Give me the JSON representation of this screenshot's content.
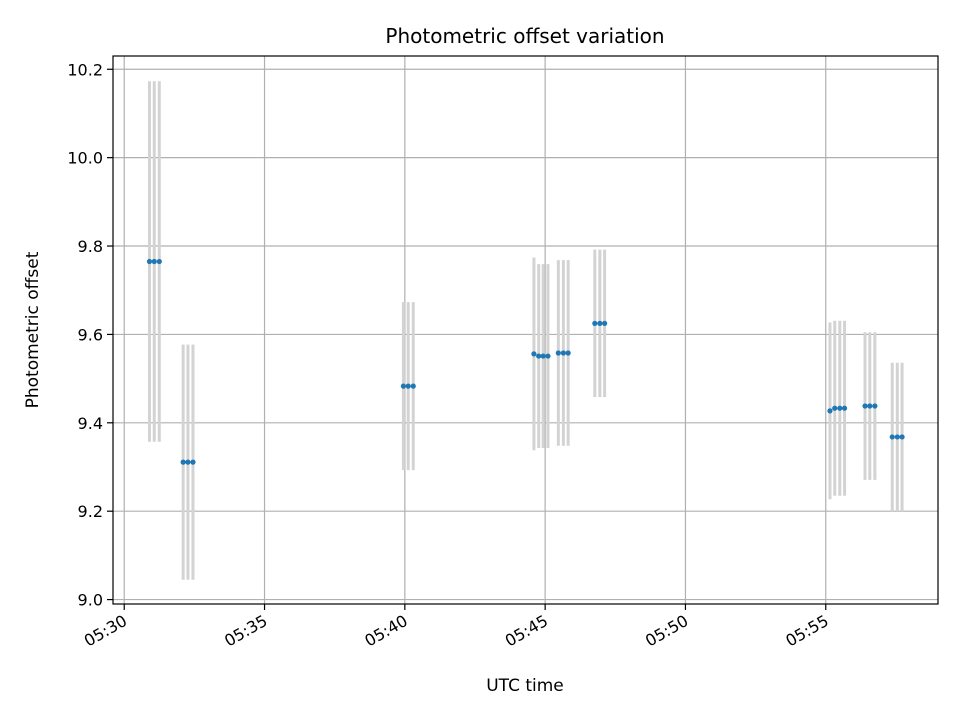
{
  "chart_data": {
    "type": "scatter",
    "title": "Photometric offset variation",
    "xlabel": "UTC time",
    "ylabel": "Photometric offset",
    "x_unit": "minutes past 05:00 UTC",
    "xlim": [
      29.6,
      59.0
    ],
    "ylim": [
      8.99,
      10.23
    ],
    "x_ticks": [
      {
        "value": 30,
        "label": "05:30"
      },
      {
        "value": 35,
        "label": "05:35"
      },
      {
        "value": 40,
        "label": "05:40"
      },
      {
        "value": 45,
        "label": "05:45"
      },
      {
        "value": 50,
        "label": "05:50"
      },
      {
        "value": 55,
        "label": "05:55"
      }
    ],
    "y_ticks": [
      {
        "value": 9.0,
        "label": "9.0"
      },
      {
        "value": 9.2,
        "label": "9.2"
      },
      {
        "value": 9.4,
        "label": "9.4"
      },
      {
        "value": 9.6,
        "label": "9.6"
      },
      {
        "value": 9.8,
        "label": "9.8"
      },
      {
        "value": 10.0,
        "label": "10.0"
      },
      {
        "value": 10.2,
        "label": "10.2"
      }
    ],
    "grid": true,
    "colors": {
      "points": "#1f77b4",
      "errorbars": "#d3d3d3",
      "grid": "#b0b0b0"
    },
    "series": [
      {
        "points": [
          {
            "x": 30.9,
            "y": 9.765,
            "err": 0.408
          },
          {
            "x": 31.07,
            "y": 9.765,
            "err": 0.408
          },
          {
            "x": 31.25,
            "y": 9.765,
            "err": 0.408
          },
          {
            "x": 32.1,
            "y": 9.311,
            "err": 0.266
          },
          {
            "x": 32.27,
            "y": 9.311,
            "err": 0.266
          },
          {
            "x": 32.45,
            "y": 9.311,
            "err": 0.266
          },
          {
            "x": 39.95,
            "y": 9.483,
            "err": 0.19
          },
          {
            "x": 40.12,
            "y": 9.483,
            "err": 0.19
          },
          {
            "x": 40.3,
            "y": 9.483,
            "err": 0.19
          },
          {
            "x": 44.6,
            "y": 9.556,
            "err": 0.218
          },
          {
            "x": 44.77,
            "y": 9.551,
            "err": 0.208
          },
          {
            "x": 44.93,
            "y": 9.551,
            "err": 0.208
          },
          {
            "x": 45.1,
            "y": 9.551,
            "err": 0.208
          },
          {
            "x": 45.47,
            "y": 9.558,
            "err": 0.21
          },
          {
            "x": 45.65,
            "y": 9.558,
            "err": 0.21
          },
          {
            "x": 45.82,
            "y": 9.558,
            "err": 0.21
          },
          {
            "x": 46.77,
            "y": 9.625,
            "err": 0.167
          },
          {
            "x": 46.95,
            "y": 9.625,
            "err": 0.167
          },
          {
            "x": 47.12,
            "y": 9.625,
            "err": 0.167
          },
          {
            "x": 55.15,
            "y": 9.427,
            "err": 0.2
          },
          {
            "x": 55.32,
            "y": 9.433,
            "err": 0.198
          },
          {
            "x": 55.5,
            "y": 9.433,
            "err": 0.198
          },
          {
            "x": 55.67,
            "y": 9.433,
            "err": 0.198
          },
          {
            "x": 56.4,
            "y": 9.438,
            "err": 0.167
          },
          {
            "x": 56.57,
            "y": 9.438,
            "err": 0.167
          },
          {
            "x": 56.75,
            "y": 9.438,
            "err": 0.167
          },
          {
            "x": 57.37,
            "y": 9.368,
            "err": 0.168
          },
          {
            "x": 57.55,
            "y": 9.368,
            "err": 0.168
          },
          {
            "x": 57.72,
            "y": 9.368,
            "err": 0.168
          }
        ]
      }
    ]
  }
}
